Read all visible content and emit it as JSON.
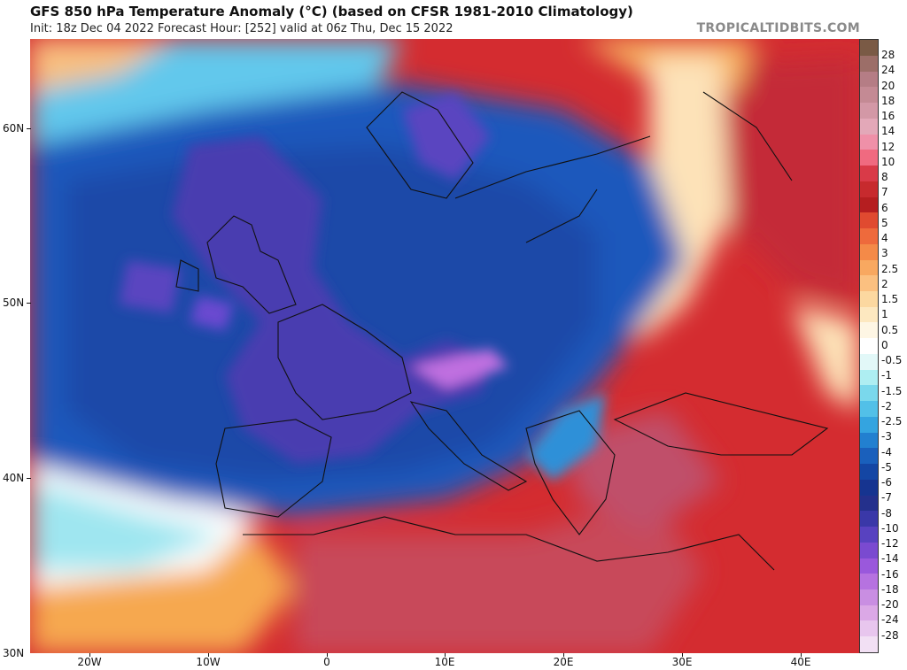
{
  "header": {
    "title": "GFS 850 hPa Temperature Anomaly (°C) (based on CFSR 1981-2010 Climatology)",
    "subtitle": "Init: 18z Dec 04 2022   Forecast Hour: [252]   valid at 06z Thu, Dec 15 2022",
    "brand": "TROPICALTIDBITS.COM"
  },
  "map": {
    "lat_labels": [
      "60N",
      "50N",
      "40N",
      "30N"
    ],
    "lon_labels": [
      "20W",
      "10W",
      "0",
      "10E",
      "20E",
      "30E",
      "40E"
    ]
  },
  "colorbar": {
    "labels": [
      "28",
      "24",
      "20",
      "18",
      "16",
      "14",
      "12",
      "10",
      "8",
      "7",
      "6",
      "5",
      "4",
      "3",
      "2.5",
      "2",
      "1.5",
      "1",
      "0.5",
      "0",
      "-0.5",
      "-1",
      "-1.5",
      "-2",
      "-2.5",
      "-3",
      "-4",
      "-5",
      "-6",
      "-7",
      "-8",
      "-10",
      "-12",
      "-14",
      "-16",
      "-18",
      "-20",
      "-24",
      "-28"
    ],
    "colors": [
      "#7a5a45",
      "#9c6e68",
      "#b57d85",
      "#c48a94",
      "#d398a6",
      "#e3a8b8",
      "#ef90a8",
      "#f06a80",
      "#d93a48",
      "#c72a2e",
      "#b51e20",
      "#e04a30",
      "#ee6a3c",
      "#f48a48",
      "#f8a860",
      "#fbc080",
      "#fcd8a0",
      "#fde8c0",
      "#fef6e4",
      "#ffffff",
      "#e2f8f8",
      "#aeeef2",
      "#7ad8ec",
      "#52c0e8",
      "#34a4e0",
      "#2280d0",
      "#1a60bc",
      "#1446a4",
      "#163490",
      "#24308c",
      "#3a38a8",
      "#5842c0",
      "#7a4ad0",
      "#9a58dc",
      "#b672e0",
      "#c98ee2",
      "#dba8e6",
      "#e8c6ee",
      "#f2e0f4"
    ]
  }
}
